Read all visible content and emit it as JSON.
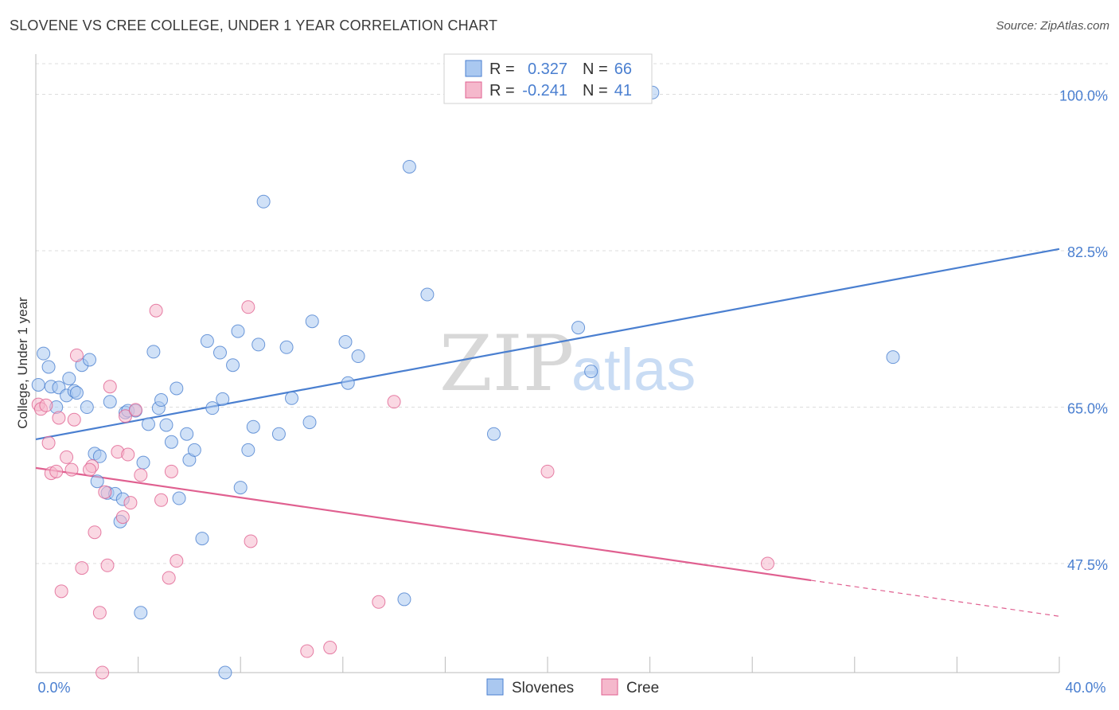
{
  "chart_data": {
    "type": "scatter",
    "title": "SLOVENE VS CREE COLLEGE, UNDER 1 YEAR CORRELATION CHART",
    "source": "Source: ZipAtlas.com",
    "ylabel": "College, Under 1 year",
    "xlim": [
      0,
      40
    ],
    "ylim": [
      35.3,
      104.5
    ],
    "x_tick_labels": [
      "0.0%",
      "40.0%"
    ],
    "y_ticks": [
      {
        "value": 100,
        "label": "100.0%"
      },
      {
        "value": 82.5,
        "label": "82.5%"
      },
      {
        "value": 65,
        "label": "65.0%"
      },
      {
        "value": 47.5,
        "label": "47.5%"
      }
    ],
    "watermark": {
      "zip": "ZIP",
      "atlas": "atlas"
    },
    "legend": {
      "r_label": "R =",
      "n_label": "N =",
      "rows": [
        {
          "r": "0.327",
          "n": "66",
          "color": "#4a7fd0"
        },
        {
          "r": "-0.241",
          "n": "41",
          "color": "#e06090"
        }
      ]
    },
    "series": [
      {
        "name": "Slovenes",
        "color": "#4a7fd0",
        "fill": "#aac8f0",
        "trend": {
          "x0": 0,
          "y0": 61.4,
          "x1": 40,
          "y1": 82.7,
          "dash_from": null
        },
        "points": [
          [
            0.3,
            71.0
          ],
          [
            0.5,
            69.5
          ],
          [
            0.6,
            67.3
          ],
          [
            0.8,
            65.0
          ],
          [
            0.9,
            67.2
          ],
          [
            1.2,
            66.3
          ],
          [
            1.3,
            68.2
          ],
          [
            1.5,
            66.8
          ],
          [
            1.6,
            66.6
          ],
          [
            1.8,
            69.7
          ],
          [
            2.0,
            65.0
          ],
          [
            2.1,
            70.3
          ],
          [
            2.3,
            59.8
          ],
          [
            2.4,
            56.7
          ],
          [
            2.5,
            59.5
          ],
          [
            2.8,
            55.4
          ],
          [
            2.9,
            65.6
          ],
          [
            3.1,
            55.3
          ],
          [
            3.3,
            52.2
          ],
          [
            3.4,
            54.7
          ],
          [
            3.5,
            64.4
          ],
          [
            3.6,
            64.6
          ],
          [
            3.9,
            64.6
          ],
          [
            4.2,
            58.8
          ],
          [
            4.1,
            42.0
          ],
          [
            4.4,
            63.1
          ],
          [
            4.6,
            71.2
          ],
          [
            4.8,
            64.9
          ],
          [
            4.9,
            65.8
          ],
          [
            5.1,
            63.0
          ],
          [
            5.3,
            61.1
          ],
          [
            5.5,
            67.1
          ],
          [
            5.6,
            54.8
          ],
          [
            5.9,
            62.0
          ],
          [
            6.0,
            59.1
          ],
          [
            6.2,
            60.2
          ],
          [
            6.5,
            50.3
          ],
          [
            6.7,
            72.4
          ],
          [
            6.9,
            64.9
          ],
          [
            7.2,
            71.1
          ],
          [
            7.3,
            65.9
          ],
          [
            7.4,
            35.3
          ],
          [
            7.7,
            69.7
          ],
          [
            7.9,
            73.5
          ],
          [
            8.0,
            56.0
          ],
          [
            8.3,
            60.2
          ],
          [
            8.5,
            62.8
          ],
          [
            8.7,
            72.0
          ],
          [
            8.9,
            88.0
          ],
          [
            9.5,
            62.0
          ],
          [
            9.8,
            71.7
          ],
          [
            10.0,
            66.0
          ],
          [
            10.7,
            63.3
          ],
          [
            10.8,
            74.6
          ],
          [
            12.1,
            72.3
          ],
          [
            12.2,
            67.7
          ],
          [
            12.6,
            70.7
          ],
          [
            14.4,
            43.5
          ],
          [
            14.6,
            91.9
          ],
          [
            15.3,
            77.6
          ],
          [
            17.9,
            62.0
          ],
          [
            21.2,
            73.9
          ],
          [
            21.7,
            69.0
          ],
          [
            24.1,
            100.2
          ],
          [
            33.5,
            70.6
          ],
          [
            0.1,
            67.5
          ]
        ]
      },
      {
        "name": "Cree",
        "color": "#e06090",
        "fill": "#f5b8cc",
        "trend": {
          "x0": 0,
          "y0": 58.2,
          "x1": 40,
          "y1": 41.6,
          "dash_from": 30.3
        },
        "points": [
          [
            0.1,
            65.3
          ],
          [
            0.2,
            64.8
          ],
          [
            0.4,
            65.2
          ],
          [
            0.5,
            61.0
          ],
          [
            0.6,
            57.6
          ],
          [
            0.8,
            57.8
          ],
          [
            0.9,
            63.8
          ],
          [
            1.0,
            44.4
          ],
          [
            1.2,
            59.4
          ],
          [
            1.4,
            58.0
          ],
          [
            1.5,
            63.6
          ],
          [
            1.6,
            70.8
          ],
          [
            1.8,
            47.0
          ],
          [
            2.2,
            58.4
          ],
          [
            2.3,
            51.0
          ],
          [
            2.5,
            42.0
          ],
          [
            2.6,
            35.3
          ],
          [
            2.7,
            55.5
          ],
          [
            2.8,
            47.3
          ],
          [
            2.9,
            67.3
          ],
          [
            3.2,
            60.0
          ],
          [
            3.4,
            52.7
          ],
          [
            3.5,
            64.0
          ],
          [
            3.6,
            59.7
          ],
          [
            3.7,
            54.3
          ],
          [
            3.9,
            64.7
          ],
          [
            4.1,
            57.4
          ],
          [
            4.7,
            75.8
          ],
          [
            4.9,
            54.6
          ],
          [
            5.2,
            45.9
          ],
          [
            5.3,
            57.8
          ],
          [
            5.5,
            47.8
          ],
          [
            8.3,
            76.2
          ],
          [
            8.4,
            50.0
          ],
          [
            10.6,
            37.7
          ],
          [
            11.5,
            38.1
          ],
          [
            13.4,
            43.2
          ],
          [
            14.0,
            65.6
          ],
          [
            20.0,
            57.8
          ],
          [
            28.6,
            47.5
          ],
          [
            2.1,
            58.0
          ]
        ]
      }
    ]
  }
}
